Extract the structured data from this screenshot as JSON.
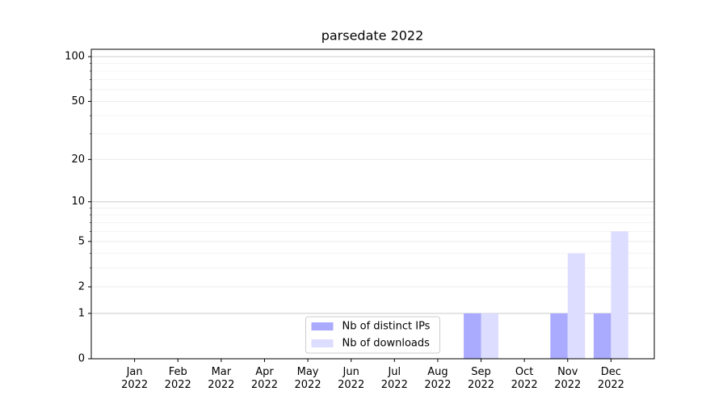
{
  "chart_data": {
    "type": "bar",
    "title": "parsedate 2022",
    "categories": [
      "Jan\n2022",
      "Feb\n2022",
      "Mar\n2022",
      "Apr\n2022",
      "May\n2022",
      "Jun\n2022",
      "Jul\n2022",
      "Aug\n2022",
      "Sep\n2022",
      "Oct\n2022",
      "Nov\n2022",
      "Dec\n2022"
    ],
    "series": [
      {
        "name": "Nb of distinct IPs",
        "color": "#aaaaff",
        "values": [
          0,
          0,
          0,
          0,
          0,
          0,
          0,
          0,
          1,
          0,
          1,
          1
        ]
      },
      {
        "name": "Nb of downloads",
        "color": "#ddddff",
        "values": [
          0,
          0,
          0,
          0,
          0,
          0,
          0,
          0,
          1,
          0,
          4,
          6
        ]
      }
    ],
    "yscale": "log1p",
    "ylim": [
      0,
      112
    ],
    "yticks": [
      0,
      1,
      2,
      5,
      10,
      20,
      50,
      100
    ],
    "minor_yticks": [
      3,
      4,
      6,
      7,
      8,
      9,
      30,
      40,
      60,
      70,
      80,
      90
    ],
    "grid": true,
    "legend": "lower center"
  }
}
